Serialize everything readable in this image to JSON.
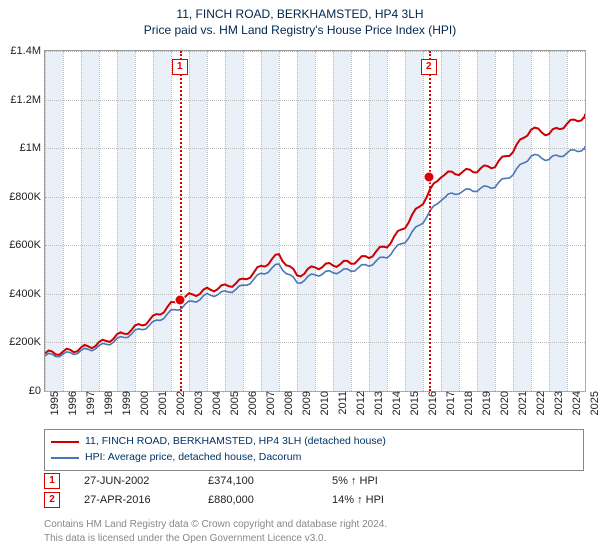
{
  "title_line1": "11, FINCH ROAD, BERKHAMSTED, HP4 3LH",
  "title_line2": "Price paid vs. HM Land Registry's House Price Index (HPI)",
  "chart": {
    "type": "line",
    "x_years": [
      1995,
      1996,
      1997,
      1998,
      1999,
      2000,
      2001,
      2002,
      2003,
      2004,
      2005,
      2006,
      2007,
      2008,
      2009,
      2010,
      2011,
      2012,
      2013,
      2014,
      2015,
      2016,
      2017,
      2018,
      2019,
      2020,
      2021,
      2022,
      2023,
      2024,
      2025
    ],
    "ylim": [
      0,
      1400000
    ],
    "y_ticks": [
      0,
      200000,
      400000,
      600000,
      800000,
      1000000,
      1200000,
      1400000
    ],
    "y_tick_labels": [
      "£0",
      "£200K",
      "£400K",
      "£600K",
      "£800K",
      "£1M",
      "£1.2M",
      "£1.4M"
    ],
    "band_even_color": "#e9f0f8",
    "grid_color": "#bbbbbb",
    "background_color": "#ffffff",
    "series": [
      {
        "name": "price_paid",
        "label": "11, FINCH ROAD, BERKHAMSTED, HP4 3LH (detached house)",
        "color": "#cc0000",
        "width": 2,
        "values": [
          155000,
          160000,
          175000,
          195000,
          225000,
          260000,
          300000,
          355000,
          392000,
          415000,
          430000,
          455000,
          510000,
          560000,
          475000,
          510000,
          520000,
          530000,
          555000,
          600000,
          680000,
          780000,
          890000,
          900000,
          910000,
          930000,
          990000,
          1080000,
          1060000,
          1100000,
          1130000
        ]
      },
      {
        "name": "hpi",
        "label": "HPI: Average price, detached house, Dacorum",
        "color": "#4a76b8",
        "width": 1.6,
        "values": [
          145000,
          150000,
          163000,
          182000,
          210000,
          243000,
          278000,
          325000,
          362000,
          393000,
          405000,
          430000,
          480000,
          520000,
          445000,
          480000,
          490000,
          498000,
          520000,
          555000,
          618000,
          700000,
          792000,
          820000,
          830000,
          845000,
          895000,
          970000,
          955000,
          980000,
          1000000
        ]
      }
    ],
    "sale_markers": [
      {
        "n": "1",
        "year": 2002.49,
        "price": 374100
      },
      {
        "n": "2",
        "year": 2016.32,
        "price": 880000
      }
    ],
    "marker_box_color": "#d00000",
    "marker_dot_color": "#d00000"
  },
  "legend": {
    "series1": "11, FINCH ROAD, BERKHAMSTED, HP4 3LH (detached house)",
    "series2": "HPI: Average price, detached house, Dacorum"
  },
  "sales_table": {
    "rows": [
      {
        "n": "1",
        "date": "27-JUN-2002",
        "price": "£374,100",
        "delta": "5% ↑ HPI"
      },
      {
        "n": "2",
        "date": "27-APR-2016",
        "price": "£880,000",
        "delta": "14% ↑ HPI"
      }
    ]
  },
  "footer": {
    "line1": "Contains HM Land Registry data © Crown copyright and database right 2024.",
    "line2": "This data is licensed under the Open Government Licence v3.0."
  }
}
